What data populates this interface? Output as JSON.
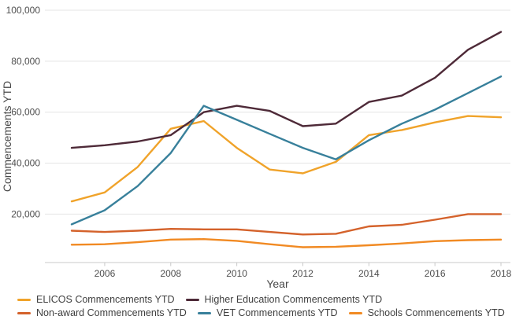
{
  "chart_data": {
    "type": "line",
    "xlabel": "Year",
    "ylabel": "Commencements YTD",
    "x": [
      2005,
      2006,
      2007,
      2008,
      2009,
      2010,
      2011,
      2012,
      2013,
      2014,
      2015,
      2016,
      2017,
      2018
    ],
    "x_ticks": [
      2006,
      2008,
      2010,
      2012,
      2014,
      2016,
      2018
    ],
    "x_tick_labels": [
      "2006",
      "2008",
      "2010",
      "2012",
      "2014",
      "2016",
      "2018"
    ],
    "y_ticks": [
      20000,
      40000,
      60000,
      80000,
      100000
    ],
    "y_tick_labels": [
      "20,000",
      "40,000",
      "60,000",
      "80,000",
      "100,000"
    ],
    "ylim": [
      1000,
      100000
    ],
    "grid": "horizontal",
    "legend_position": "bottom-left",
    "background": "#ffffff",
    "gridline_color": "#e4e4e4",
    "axis_line_color": "#c9c9c9",
    "tick_label_color": "#4e4e4e",
    "series": [
      {
        "name": "ELICOS Commencements YTD",
        "color": "#F0A32A",
        "values": [
          25000,
          28500,
          38500,
          53500,
          56500,
          46000,
          37500,
          36000,
          40500,
          51000,
          53000,
          56000,
          58500,
          58000
        ]
      },
      {
        "name": "Higher Education Commencements YTD",
        "color": "#4E2A38",
        "values": [
          46000,
          47000,
          48500,
          51000,
          60000,
          62500,
          60500,
          54500,
          55500,
          64000,
          66500,
          73500,
          84500,
          91500
        ]
      },
      {
        "name": "Non-award Commencements YTD",
        "color": "#D4622B",
        "values": [
          13500,
          13000,
          13500,
          14200,
          14000,
          14000,
          13000,
          12000,
          12300,
          15200,
          15800,
          17800,
          20000,
          20000
        ]
      },
      {
        "name": "VET Commencements YTD",
        "color": "#38809B",
        "values": [
          16000,
          21500,
          31000,
          44000,
          62500,
          57000,
          51500,
          46000,
          41500,
          49000,
          55500,
          61000,
          67500,
          74000
        ]
      },
      {
        "name": "Schools Commencements YTD",
        "color": "#F18A23",
        "values": [
          8000,
          8200,
          9000,
          10000,
          10200,
          9500,
          8200,
          7000,
          7200,
          7800,
          8500,
          9400,
          9800,
          10000
        ]
      }
    ],
    "legend_rows": [
      [
        0,
        1
      ],
      [
        2,
        3,
        4
      ]
    ],
    "draw_order": [
      0,
      2,
      4,
      1,
      3
    ]
  }
}
